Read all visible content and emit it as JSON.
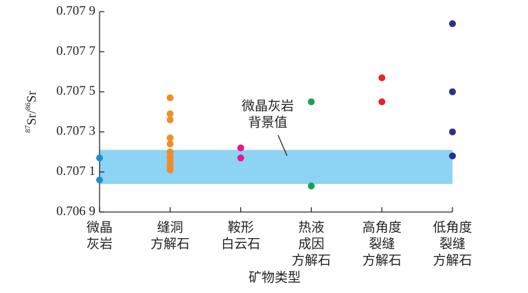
{
  "chart_data": {
    "type": "scatter",
    "ylabel": [
      "87",
      "Sr/",
      "86",
      "Sr"
    ],
    "xlabel": "矿物类型",
    "categories": [
      [
        "微晶",
        "灰岩"
      ],
      [
        "缝洞",
        "方解石"
      ],
      [
        "鞍形",
        "白云石"
      ],
      [
        "热液",
        "成因",
        "方解石"
      ],
      [
        "高角度",
        "裂缝",
        "方解石"
      ],
      [
        "低角度",
        "裂缝",
        "方解石"
      ]
    ],
    "series": [
      {
        "color": "#1f8fd2",
        "values": [
          0.70717,
          0.70706
        ]
      },
      {
        "color": "#f28c28",
        "values": [
          0.70747,
          0.70739,
          0.70736,
          0.70727,
          0.70724,
          0.7072,
          0.70718,
          0.70717,
          0.70715,
          0.70713,
          0.70712,
          0.70711
        ]
      },
      {
        "color": "#e5198a",
        "values": [
          0.70722,
          0.70717
        ]
      },
      {
        "color": "#12a552",
        "values": [
          0.70745,
          0.70703
        ]
      },
      {
        "color": "#e3242b",
        "values": [
          0.70757,
          0.70745
        ]
      },
      {
        "color": "#2b3090",
        "values": [
          0.70784,
          0.7075,
          0.7073,
          0.70718
        ]
      }
    ],
    "band": {
      "range": [
        0.70704,
        0.70721
      ],
      "color": "#8dd3f3"
    },
    "annotation": [
      "微晶灰岩",
      "背景值"
    ],
    "ylim": [
      0.7069,
      0.7079
    ],
    "yticks": [
      {
        "value": 0.7069,
        "label": "0.706 9"
      },
      {
        "value": 0.7071,
        "label": "0.707 1"
      },
      {
        "value": 0.7073,
        "label": "0.707 3"
      },
      {
        "value": 0.7075,
        "label": "0.707 5"
      },
      {
        "value": 0.7077,
        "label": "0.707 7"
      },
      {
        "value": 0.7079,
        "label": "0.707 9"
      }
    ]
  }
}
